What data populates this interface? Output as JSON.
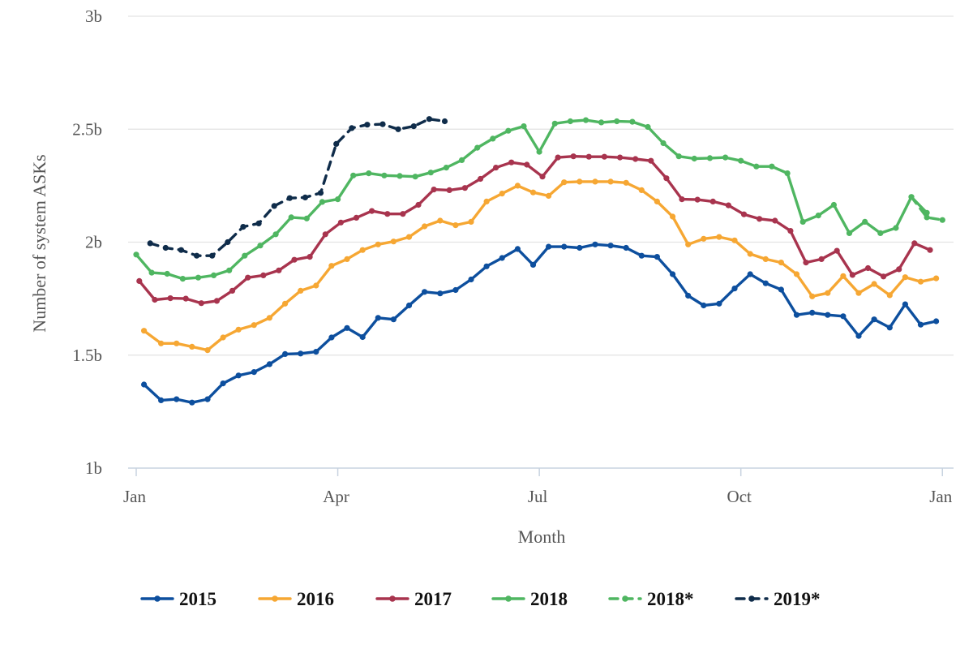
{
  "chart_data": {
    "type": "line",
    "xlabel": "Month",
    "ylabel": "Number of system ASKs",
    "ylim": [
      1,
      3
    ],
    "y_ticks": [
      {
        "value": 1,
        "label": "1b"
      },
      {
        "value": 1.5,
        "label": "1.5b"
      },
      {
        "value": 2,
        "label": "2b"
      },
      {
        "value": 2.5,
        "label": "2.5b"
      },
      {
        "value": 3,
        "label": "3b"
      }
    ],
    "x_ticks": [
      {
        "week": 0,
        "label": "Jan"
      },
      {
        "week": 13,
        "label": "Apr"
      },
      {
        "week": 26,
        "label": "Jul"
      },
      {
        "week": 39,
        "label": "Oct"
      },
      {
        "week": 52,
        "label": "Jan"
      }
    ],
    "xlim": [
      0,
      52.3
    ],
    "grid": true,
    "legend_position": "bottom",
    "series": [
      {
        "name": "2015",
        "color": "#0d4f9e",
        "dash": "solid",
        "markers": true,
        "points": [
          [
            0.5,
            1.37
          ],
          [
            1.6,
            1.3
          ],
          [
            2.6,
            1.305
          ],
          [
            3.6,
            1.29
          ],
          [
            4.6,
            1.305
          ],
          [
            5.6,
            1.375
          ],
          [
            6.6,
            1.41
          ],
          [
            7.6,
            1.425
          ],
          [
            8.6,
            1.46
          ],
          [
            9.6,
            1.505
          ],
          [
            10.6,
            1.507
          ],
          [
            11.6,
            1.515
          ],
          [
            12.6,
            1.578
          ],
          [
            13.6,
            1.62
          ],
          [
            14.6,
            1.58
          ],
          [
            15.6,
            1.665
          ],
          [
            16.6,
            1.658
          ],
          [
            17.6,
            1.72
          ],
          [
            18.6,
            1.78
          ],
          [
            19.6,
            1.773
          ],
          [
            20.6,
            1.788
          ],
          [
            21.6,
            1.835
          ],
          [
            22.6,
            1.893
          ],
          [
            23.6,
            1.93
          ],
          [
            24.6,
            1.97
          ],
          [
            25.6,
            1.9
          ],
          [
            26.6,
            1.98
          ],
          [
            27.6,
            1.98
          ],
          [
            28.6,
            1.975
          ],
          [
            29.6,
            1.99
          ],
          [
            30.6,
            1.985
          ],
          [
            31.6,
            1.975
          ],
          [
            32.6,
            1.94
          ],
          [
            33.6,
            1.935
          ],
          [
            34.6,
            1.858
          ],
          [
            35.6,
            1.763
          ],
          [
            36.6,
            1.72
          ],
          [
            37.6,
            1.728
          ],
          [
            38.6,
            1.795
          ],
          [
            39.6,
            1.858
          ],
          [
            40.6,
            1.818
          ],
          [
            41.6,
            1.79
          ],
          [
            42.6,
            1.678
          ],
          [
            43.6,
            1.688
          ],
          [
            44.6,
            1.678
          ],
          [
            45.6,
            1.672
          ],
          [
            46.6,
            1.585
          ],
          [
            47.6,
            1.658
          ],
          [
            48.6,
            1.622
          ],
          [
            49.6,
            1.725
          ],
          [
            50.6,
            1.635
          ],
          [
            51.6,
            1.65
          ]
        ]
      },
      {
        "name": "2016",
        "color": "#f6a733",
        "dash": "solid",
        "markers": true,
        "points": [
          [
            0.5,
            1.608
          ],
          [
            1.6,
            1.552
          ],
          [
            2.6,
            1.552
          ],
          [
            3.6,
            1.537
          ],
          [
            4.6,
            1.522
          ],
          [
            5.6,
            1.578
          ],
          [
            6.6,
            1.613
          ],
          [
            7.6,
            1.633
          ],
          [
            8.6,
            1.665
          ],
          [
            9.6,
            1.728
          ],
          [
            10.6,
            1.785
          ],
          [
            11.6,
            1.808
          ],
          [
            12.6,
            1.895
          ],
          [
            13.6,
            1.925
          ],
          [
            14.6,
            1.965
          ],
          [
            15.6,
            1.99
          ],
          [
            16.6,
            2.003
          ],
          [
            17.6,
            2.023
          ],
          [
            18.6,
            2.07
          ],
          [
            19.6,
            2.095
          ],
          [
            20.6,
            2.075
          ],
          [
            21.6,
            2.09
          ],
          [
            22.6,
            2.18
          ],
          [
            23.6,
            2.215
          ],
          [
            24.6,
            2.25
          ],
          [
            25.6,
            2.22
          ],
          [
            26.6,
            2.205
          ],
          [
            27.6,
            2.265
          ],
          [
            28.6,
            2.268
          ],
          [
            29.6,
            2.268
          ],
          [
            30.6,
            2.268
          ],
          [
            31.6,
            2.263
          ],
          [
            32.6,
            2.23
          ],
          [
            33.6,
            2.18
          ],
          [
            34.6,
            2.113
          ],
          [
            35.6,
            1.99
          ],
          [
            36.6,
            2.015
          ],
          [
            37.6,
            2.023
          ],
          [
            38.6,
            2.008
          ],
          [
            39.6,
            1.948
          ],
          [
            40.6,
            1.925
          ],
          [
            41.6,
            1.91
          ],
          [
            42.6,
            1.858
          ],
          [
            43.6,
            1.76
          ],
          [
            44.6,
            1.775
          ],
          [
            45.6,
            1.85
          ],
          [
            46.6,
            1.775
          ],
          [
            47.6,
            1.815
          ],
          [
            48.6,
            1.765
          ],
          [
            49.6,
            1.845
          ],
          [
            50.6,
            1.825
          ],
          [
            51.6,
            1.84
          ]
        ]
      },
      {
        "name": "2017",
        "color": "#a8344e",
        "dash": "solid",
        "markers": true,
        "points": [
          [
            0.2,
            1.828
          ],
          [
            1.2,
            1.745
          ],
          [
            2.2,
            1.752
          ],
          [
            3.2,
            1.75
          ],
          [
            4.2,
            1.73
          ],
          [
            5.2,
            1.74
          ],
          [
            6.2,
            1.785
          ],
          [
            7.2,
            1.843
          ],
          [
            8.2,
            1.853
          ],
          [
            9.2,
            1.875
          ],
          [
            10.2,
            1.922
          ],
          [
            11.2,
            1.935
          ],
          [
            12.2,
            2.035
          ],
          [
            13.2,
            2.087
          ],
          [
            14.2,
            2.108
          ],
          [
            15.2,
            2.138
          ],
          [
            16.2,
            2.125
          ],
          [
            17.2,
            2.125
          ],
          [
            18.2,
            2.165
          ],
          [
            19.2,
            2.233
          ],
          [
            20.2,
            2.23
          ],
          [
            21.2,
            2.24
          ],
          [
            22.2,
            2.28
          ],
          [
            23.2,
            2.33
          ],
          [
            24.2,
            2.353
          ],
          [
            25.2,
            2.343
          ],
          [
            26.2,
            2.29
          ],
          [
            27.2,
            2.375
          ],
          [
            28.2,
            2.38
          ],
          [
            29.2,
            2.378
          ],
          [
            30.2,
            2.378
          ],
          [
            31.2,
            2.375
          ],
          [
            32.2,
            2.368
          ],
          [
            33.2,
            2.36
          ],
          [
            34.2,
            2.283
          ],
          [
            35.2,
            2.19
          ],
          [
            36.2,
            2.188
          ],
          [
            37.2,
            2.18
          ],
          [
            38.2,
            2.163
          ],
          [
            39.2,
            2.123
          ],
          [
            40.2,
            2.103
          ],
          [
            41.2,
            2.095
          ],
          [
            42.2,
            2.05
          ],
          [
            43.2,
            1.91
          ],
          [
            44.2,
            1.925
          ],
          [
            45.2,
            1.962
          ],
          [
            46.2,
            1.855
          ],
          [
            47.2,
            1.885
          ],
          [
            48.2,
            1.848
          ],
          [
            49.2,
            1.88
          ],
          [
            50.2,
            1.995
          ],
          [
            51.2,
            1.965
          ]
        ]
      },
      {
        "name": "2018",
        "color": "#4fb661",
        "dash": "solid",
        "markers": true,
        "points": [
          [
            0,
            1.945
          ],
          [
            1,
            1.865
          ],
          [
            2,
            1.86
          ],
          [
            3,
            1.838
          ],
          [
            4,
            1.843
          ],
          [
            5,
            1.853
          ],
          [
            6,
            1.875
          ],
          [
            7,
            1.94
          ],
          [
            8,
            1.985
          ],
          [
            9,
            2.035
          ],
          [
            10,
            2.11
          ],
          [
            11,
            2.105
          ],
          [
            12,
            2.178
          ],
          [
            13,
            2.19
          ],
          [
            14,
            2.295
          ],
          [
            15,
            2.305
          ],
          [
            16,
            2.295
          ],
          [
            17,
            2.293
          ],
          [
            18,
            2.29
          ],
          [
            19,
            2.308
          ],
          [
            20,
            2.33
          ],
          [
            21,
            2.363
          ],
          [
            22,
            2.418
          ],
          [
            23,
            2.458
          ],
          [
            24,
            2.493
          ],
          [
            25,
            2.513
          ],
          [
            26,
            2.4
          ],
          [
            27,
            2.525
          ],
          [
            28,
            2.535
          ],
          [
            29,
            2.54
          ],
          [
            30,
            2.53
          ],
          [
            31,
            2.535
          ],
          [
            32,
            2.533
          ],
          [
            33,
            2.51
          ],
          [
            34,
            2.438
          ],
          [
            35,
            2.38
          ],
          [
            36,
            2.37
          ],
          [
            37,
            2.372
          ],
          [
            38,
            2.375
          ],
          [
            39,
            2.36
          ],
          [
            40,
            2.335
          ],
          [
            41,
            2.335
          ],
          [
            42,
            2.305
          ],
          [
            43,
            2.09
          ],
          [
            44,
            2.118
          ],
          [
            45,
            2.165
          ],
          [
            46,
            2.04
          ],
          [
            47,
            2.09
          ],
          [
            48,
            2.04
          ],
          [
            49,
            2.063
          ],
          [
            50,
            2.2
          ],
          [
            51,
            2.13
          ]
        ]
      },
      {
        "name": "2018*",
        "color": "#4fb661",
        "dash": "dashed",
        "markers": true,
        "points": [
          [
            50,
            2.2
          ],
          [
            51,
            2.11
          ],
          [
            52,
            2.098
          ]
        ]
      },
      {
        "name": "2019*",
        "color": "#0f2c4a",
        "dash": "dashed",
        "markers": true,
        "points": [
          [
            0.9,
            1.995
          ],
          [
            1.9,
            1.975
          ],
          [
            2.9,
            1.965
          ],
          [
            3.9,
            1.94
          ],
          [
            4.9,
            1.94
          ],
          [
            5.9,
            2.0
          ],
          [
            6.9,
            2.068
          ],
          [
            7.9,
            2.083
          ],
          [
            8.9,
            2.16
          ],
          [
            9.9,
            2.195
          ],
          [
            10.9,
            2.198
          ],
          [
            11.9,
            2.218
          ],
          [
            12.9,
            2.435
          ],
          [
            13.9,
            2.505
          ],
          [
            14.9,
            2.52
          ],
          [
            15.9,
            2.522
          ],
          [
            16.9,
            2.5
          ],
          [
            17.9,
            2.513
          ],
          [
            18.9,
            2.545
          ],
          [
            19.9,
            2.535
          ]
        ]
      }
    ]
  }
}
